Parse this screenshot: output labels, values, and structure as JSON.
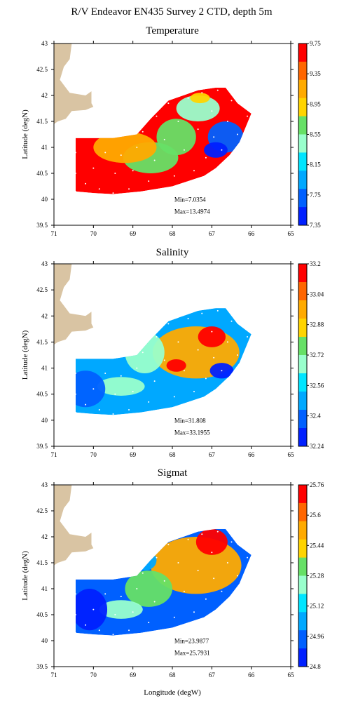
{
  "figure": {
    "title": "R/V Endeavor EN435 Survey 2 CTD, depth 5m"
  },
  "axes": {
    "xlabel": "Longitude (degW)",
    "ylabel": "Latitude (degN)",
    "x_ticks": [
      "71",
      "70",
      "69",
      "68",
      "67",
      "66",
      "65"
    ],
    "y_ticks": [
      "43",
      "42.5",
      "42",
      "41.5",
      "41",
      "40.5",
      "40",
      "39.5"
    ]
  },
  "colors": {
    "land": "#d9c4a3",
    "frame": "#000000",
    "station_dot": "#ffffff"
  },
  "chart_data": [
    {
      "type": "heatmap",
      "title": "Temperature",
      "xlim": [
        71,
        65
      ],
      "ylim": [
        39.5,
        43
      ],
      "colorbar_ticks": [
        "9.75",
        "9.35",
        "8.95",
        "8.55",
        "8.15",
        "7.75",
        "7.35"
      ],
      "colorbar_colors": [
        "#ff0000",
        "#ff6600",
        "#ffaa00",
        "#ffd400",
        "#66e066",
        "#99ffcc",
        "#00e5ff",
        "#00a8ff",
        "#0060ff",
        "#0020ff"
      ],
      "min_label": "Min=7.0354",
      "max_label": "Max=13.4974",
      "min": 7.0354,
      "max": 13.4974,
      "field": {
        "base_level": 9,
        "blobs": [
          {
            "lon": 67.35,
            "lat": 41.75,
            "level": 4,
            "rlon": 0.55,
            "rlat": 0.25
          },
          {
            "lon": 67.3,
            "lat": 41.95,
            "level": 6,
            "rlon": 0.25,
            "rlat": 0.1
          },
          {
            "lon": 66.65,
            "lat": 41.2,
            "level": 1,
            "rlon": 0.45,
            "rlat": 0.3
          },
          {
            "lon": 66.9,
            "lat": 40.95,
            "level": 0,
            "rlon": 0.3,
            "rlat": 0.15
          },
          {
            "lon": 68.55,
            "lat": 40.8,
            "level": 5,
            "rlon": 0.7,
            "rlat": 0.3
          },
          {
            "lon": 67.9,
            "lat": 41.2,
            "level": 5,
            "rlon": 0.5,
            "rlat": 0.35
          },
          {
            "lon": 69.2,
            "lat": 41.0,
            "level": 7,
            "rlon": 0.8,
            "rlat": 0.3
          }
        ]
      }
    },
    {
      "type": "heatmap",
      "title": "Salinity",
      "xlim": [
        71,
        65
      ],
      "ylim": [
        39.5,
        43
      ],
      "colorbar_ticks": [
        "33.2",
        "33.04",
        "32.88",
        "32.72",
        "32.56",
        "32.4",
        "32.24"
      ],
      "colorbar_colors": [
        "#ff0000",
        "#ff6600",
        "#ffaa00",
        "#ffd400",
        "#66e066",
        "#99ffcc",
        "#00e5ff",
        "#00a8ff",
        "#0060ff",
        "#0020ff"
      ],
      "min_label": "Min=31.808",
      "max_label": "Max=33.1955",
      "min": 31.808,
      "max": 33.1955,
      "field": {
        "base_level": 2,
        "blobs": [
          {
            "lon": 67.4,
            "lat": 41.3,
            "level": 7,
            "rlon": 1.1,
            "rlat": 0.5
          },
          {
            "lon": 67.0,
            "lat": 41.6,
            "level": 9,
            "rlon": 0.35,
            "rlat": 0.2
          },
          {
            "lon": 67.9,
            "lat": 41.05,
            "level": 9,
            "rlon": 0.25,
            "rlat": 0.12
          },
          {
            "lon": 66.75,
            "lat": 40.95,
            "level": 0,
            "rlon": 0.3,
            "rlat": 0.15
          },
          {
            "lon": 68.7,
            "lat": 41.3,
            "level": 4,
            "rlon": 0.5,
            "rlat": 0.4
          },
          {
            "lon": 69.3,
            "lat": 40.65,
            "level": 4,
            "rlon": 0.6,
            "rlat": 0.18
          },
          {
            "lon": 70.2,
            "lat": 40.6,
            "level": 1,
            "rlon": 0.5,
            "rlat": 0.35
          }
        ]
      }
    },
    {
      "type": "heatmap",
      "title": "Sigmat",
      "xlim": [
        71,
        65
      ],
      "ylim": [
        39.5,
        43
      ],
      "colorbar_ticks": [
        "25.76",
        "25.6",
        "25.44",
        "25.28",
        "25.12",
        "24.96",
        "24.8"
      ],
      "colorbar_colors": [
        "#ff0000",
        "#ff6600",
        "#ffaa00",
        "#ffd400",
        "#66e066",
        "#99ffcc",
        "#00e5ff",
        "#00a8ff",
        "#0060ff",
        "#0020ff"
      ],
      "min_label": "Min=23.9877",
      "max_label": "Max=25.7931",
      "min": 23.9877,
      "max": 25.7931,
      "field": {
        "base_level": 1,
        "blobs": [
          {
            "lon": 67.4,
            "lat": 41.45,
            "level": 7,
            "rlon": 1.15,
            "rlat": 0.55
          },
          {
            "lon": 67.0,
            "lat": 41.9,
            "level": 9,
            "rlon": 0.4,
            "rlat": 0.25
          },
          {
            "lon": 68.6,
            "lat": 41.0,
            "level": 5,
            "rlon": 0.6,
            "rlat": 0.35
          },
          {
            "lon": 69.3,
            "lat": 40.6,
            "level": 4,
            "rlon": 0.55,
            "rlat": 0.18
          },
          {
            "lon": 68.7,
            "lat": 41.55,
            "level": 2,
            "rlon": 0.3,
            "rlat": 0.2
          },
          {
            "lon": 70.1,
            "lat": 40.6,
            "level": 0,
            "rlon": 0.45,
            "rlat": 0.4
          }
        ]
      }
    }
  ],
  "survey": {
    "domain_outline": [
      [
        70.45,
        41.18
      ],
      [
        69.5,
        41.18
      ],
      [
        68.9,
        41.25
      ],
      [
        68.55,
        41.55
      ],
      [
        68.1,
        41.9
      ],
      [
        67.35,
        42.1
      ],
      [
        66.9,
        42.15
      ],
      [
        66.65,
        42.15
      ],
      [
        66.35,
        41.85
      ],
      [
        66.0,
        41.65
      ],
      [
        66.3,
        41.1
      ],
      [
        66.55,
        40.85
      ],
      [
        66.9,
        40.6
      ],
      [
        67.2,
        40.45
      ],
      [
        67.6,
        40.35
      ],
      [
        68.0,
        40.25
      ],
      [
        68.8,
        40.15
      ],
      [
        69.5,
        40.1
      ],
      [
        70.0,
        40.12
      ],
      [
        70.45,
        40.15
      ]
    ],
    "stations": [
      [
        70.45,
        40.15
      ],
      [
        70.45,
        40.5
      ],
      [
        70.45,
        40.9
      ],
      [
        70.2,
        40.3
      ],
      [
        70.0,
        40.6
      ],
      [
        69.85,
        40.2
      ],
      [
        69.7,
        40.9
      ],
      [
        69.5,
        40.12
      ],
      [
        69.45,
        40.5
      ],
      [
        69.3,
        40.85
      ],
      [
        69.1,
        40.2
      ],
      [
        69.0,
        40.55
      ],
      [
        68.9,
        41.0
      ],
      [
        68.75,
        41.3
      ],
      [
        68.6,
        40.35
      ],
      [
        68.45,
        40.75
      ],
      [
        68.4,
        41.6
      ],
      [
        68.2,
        41.15
      ],
      [
        68.1,
        41.85
      ],
      [
        67.95,
        40.45
      ],
      [
        67.85,
        41.5
      ],
      [
        67.7,
        40.95
      ],
      [
        67.6,
        41.95
      ],
      [
        67.45,
        40.55
      ],
      [
        67.35,
        41.35
      ],
      [
        67.25,
        42.05
      ],
      [
        67.15,
        40.8
      ],
      [
        67.0,
        41.7
      ],
      [
        66.95,
        41.2
      ],
      [
        66.85,
        42.1
      ],
      [
        66.75,
        40.95
      ],
      [
        66.6,
        41.5
      ],
      [
        66.5,
        41.9
      ],
      [
        66.35,
        41.25
      ],
      [
        66.1,
        41.6
      ]
    ]
  }
}
